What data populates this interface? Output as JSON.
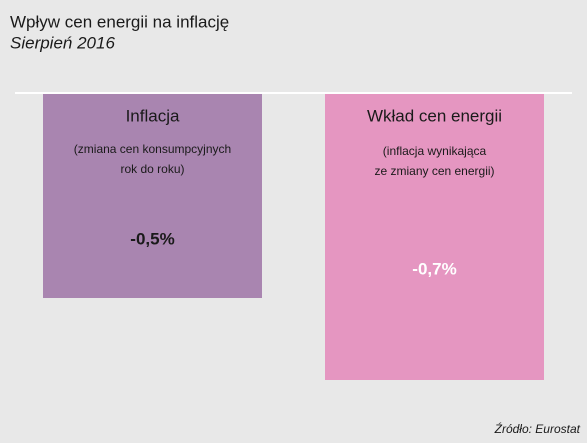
{
  "chart_data": {
    "type": "bar",
    "title": "Wpływ cen energii na inflację",
    "subtitle": "Sierpień 2016",
    "categories": [
      "Inflacja",
      "Wkład cen energii"
    ],
    "sublabels": [
      [
        "(zmiana cen konsumpcyjnych",
        "rok do roku)"
      ],
      [
        "(inflacja wynikająca",
        "ze zmiany cen energii)"
      ]
    ],
    "values": [
      -0.5,
      -0.7
    ],
    "value_labels": [
      "-0,5%",
      "-0,7%"
    ],
    "colors": [
      "#a985b0",
      "#e596c1"
    ],
    "source": "Źródło: Eurostat"
  }
}
